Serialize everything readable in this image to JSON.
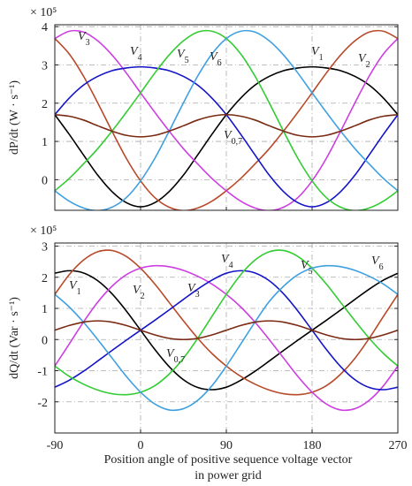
{
  "chart_data": [
    {
      "type": "line",
      "y_label": "dP/dt (W · s⁻¹)",
      "y_multiplier": "× 10⁵",
      "x": [
        -90,
        -75,
        -60,
        -45,
        -30,
        -15,
        0,
        15,
        30,
        45,
        60,
        75,
        90,
        105,
        120,
        135,
        150,
        165,
        180,
        195,
        210,
        225,
        240,
        255,
        270
      ],
      "xlim": [
        -90,
        270
      ],
      "xticks": [
        -90,
        0,
        90,
        180,
        270
      ],
      "ylim": [
        -0.8,
        4.05
      ],
      "yticks": [
        0,
        1,
        2,
        3,
        4
      ],
      "grid": true,
      "series": [
        {
          "name": "V1",
          "color": "#000000",
          "values": [
            1.7,
            1.19,
            0.65,
            0.12,
            -0.31,
            -0.6,
            -0.71,
            -0.6,
            -0.31,
            0.12,
            0.65,
            1.19,
            1.7,
            2.13,
            2.47,
            2.7,
            2.85,
            2.92,
            2.95,
            2.92,
            2.85,
            2.7,
            2.47,
            2.13,
            1.7
          ]
        },
        {
          "name": "V2",
          "color": "#b84a2a",
          "values": [
            3.69,
            3.29,
            2.71,
            2.01,
            1.27,
            0.56,
            -0.03,
            -0.47,
            -0.72,
            -0.81,
            -0.74,
            -0.56,
            -0.29,
            0.03,
            0.41,
            0.81,
            1.27,
            1.76,
            2.27,
            2.79,
            3.26,
            3.63,
            3.86,
            3.88,
            3.69
          ]
        },
        {
          "name": "V3",
          "color": "#cc3fe0",
          "values": [
            3.69,
            3.88,
            3.86,
            3.63,
            3.26,
            2.79,
            2.27,
            1.76,
            1.27,
            0.81,
            0.41,
            0.03,
            -0.29,
            -0.56,
            -0.74,
            -0.81,
            -0.72,
            -0.47,
            -0.03,
            0.56,
            1.27,
            2.01,
            2.71,
            3.29,
            3.69
          ]
        },
        {
          "name": "V4",
          "color": "#1414c8",
          "values": [
            1.7,
            2.13,
            2.47,
            2.7,
            2.85,
            2.92,
            2.95,
            2.92,
            2.85,
            2.7,
            2.47,
            2.13,
            1.7,
            1.19,
            0.65,
            0.12,
            -0.31,
            -0.6,
            -0.71,
            -0.6,
            -0.31,
            0.12,
            0.65,
            1.19,
            1.7
          ]
        },
        {
          "name": "V5",
          "color": "#33cc33",
          "values": [
            -0.29,
            0.03,
            0.41,
            0.81,
            1.27,
            1.76,
            2.27,
            2.79,
            3.26,
            3.63,
            3.86,
            3.88,
            3.69,
            3.29,
            2.71,
            2.01,
            1.27,
            0.56,
            -0.03,
            -0.47,
            -0.72,
            -0.81,
            -0.74,
            -0.56,
            -0.29
          ]
        },
        {
          "name": "V6",
          "color": "#3fa0e0",
          "values": [
            -0.29,
            -0.56,
            -0.74,
            -0.81,
            -0.72,
            -0.47,
            -0.03,
            0.56,
            1.27,
            2.01,
            2.71,
            3.29,
            3.69,
            3.88,
            3.86,
            3.63,
            3.26,
            2.79,
            2.27,
            1.76,
            1.27,
            0.81,
            0.41,
            0.03,
            -0.29
          ]
        },
        {
          "name": "V0,7",
          "color": "#7a2a12",
          "values": [
            1.7,
            1.66,
            1.56,
            1.41,
            1.27,
            1.16,
            1.12,
            1.16,
            1.27,
            1.41,
            1.56,
            1.66,
            1.7,
            1.66,
            1.56,
            1.41,
            1.27,
            1.16,
            1.12,
            1.16,
            1.27,
            1.41,
            1.56,
            1.66,
            1.7
          ]
        }
      ]
    },
    {
      "type": "line",
      "y_label": "dQ/dt (Var · s⁻¹)",
      "y_multiplier": "× 10⁵",
      "x_label": [
        "Position angle of positive sequence voltage vector",
        "in power grid"
      ],
      "x": [
        -90,
        -75,
        -60,
        -45,
        -30,
        -15,
        0,
        15,
        30,
        45,
        60,
        75,
        90,
        105,
        120,
        135,
        150,
        165,
        180,
        195,
        210,
        225,
        240,
        255,
        270
      ],
      "xlim": [
        -90,
        270
      ],
      "xticks": [
        -90,
        0,
        90,
        180,
        270
      ],
      "ylim": [
        -3,
        3.1
      ],
      "yticks": [
        -2,
        -1,
        0,
        1,
        2,
        3
      ],
      "grid": true,
      "series": [
        {
          "name": "V1",
          "color": "#000000",
          "values": [
            2.13,
            2.21,
            2.14,
            1.89,
            1.47,
            0.92,
            0.3,
            -0.32,
            -0.87,
            -1.29,
            -1.54,
            -1.61,
            -1.53,
            -1.31,
            -1.02,
            -0.69,
            -0.35,
            -0.02,
            0.3,
            0.62,
            0.95,
            1.29,
            1.62,
            1.91,
            2.13
          ]
        },
        {
          "name": "V2",
          "color": "#b84a2a",
          "values": [
            1.45,
            2.08,
            2.55,
            2.82,
            2.86,
            2.67,
            2.29,
            1.78,
            1.19,
            0.6,
            0.04,
            -0.45,
            -0.85,
            -1.18,
            -1.43,
            -1.62,
            -1.74,
            -1.77,
            -1.69,
            -1.48,
            -1.11,
            -0.6,
            0.04,
            0.75,
            1.45
          ]
        },
        {
          "name": "V3",
          "color": "#cc3fe0",
          "values": [
            -0.85,
            -0.15,
            0.56,
            1.2,
            1.71,
            2.08,
            2.29,
            2.37,
            2.34,
            2.22,
            2.03,
            1.78,
            1.45,
            1.05,
            0.56,
            0.0,
            -0.59,
            -1.18,
            -1.69,
            -2.07,
            -2.26,
            -2.22,
            -1.95,
            -1.48,
            -0.85
          ]
        },
        {
          "name": "V4",
          "color": "#1414c8",
          "values": [
            -1.53,
            -1.31,
            -1.02,
            -0.69,
            -0.35,
            -0.02,
            0.3,
            0.62,
            0.95,
            1.29,
            1.62,
            1.91,
            2.13,
            2.21,
            2.14,
            1.89,
            1.47,
            0.92,
            0.3,
            -0.32,
            -0.87,
            -1.29,
            -1.54,
            -1.61,
            -1.53
          ]
        },
        {
          "name": "V5",
          "color": "#33cc33",
          "values": [
            -0.85,
            -1.18,
            -1.43,
            -1.62,
            -1.74,
            -1.77,
            -1.69,
            -1.48,
            -1.11,
            -0.6,
            0.04,
            0.75,
            1.45,
            2.08,
            2.55,
            2.82,
            2.86,
            2.67,
            2.29,
            1.78,
            1.19,
            0.6,
            0.04,
            -0.45,
            -0.85
          ]
        },
        {
          "name": "V6",
          "color": "#3fa0e0",
          "values": [
            1.45,
            1.05,
            0.56,
            0.0,
            -0.59,
            -1.18,
            -1.69,
            -2.07,
            -2.26,
            -2.22,
            -1.95,
            -1.48,
            -0.85,
            -0.15,
            0.56,
            1.22,
            1.71,
            2.08,
            2.29,
            2.37,
            2.34,
            2.22,
            2.03,
            1.78,
            1.45
          ]
        },
        {
          "name": "V0,7",
          "color": "#7a2a12",
          "values": [
            0.3,
            0.45,
            0.56,
            0.6,
            0.56,
            0.45,
            0.3,
            0.15,
            0.04,
            0.0,
            0.04,
            0.15,
            0.3,
            0.45,
            0.56,
            0.6,
            0.56,
            0.45,
            0.3,
            0.15,
            0.04,
            0.0,
            0.04,
            0.15,
            0.3
          ]
        }
      ]
    }
  ]
}
